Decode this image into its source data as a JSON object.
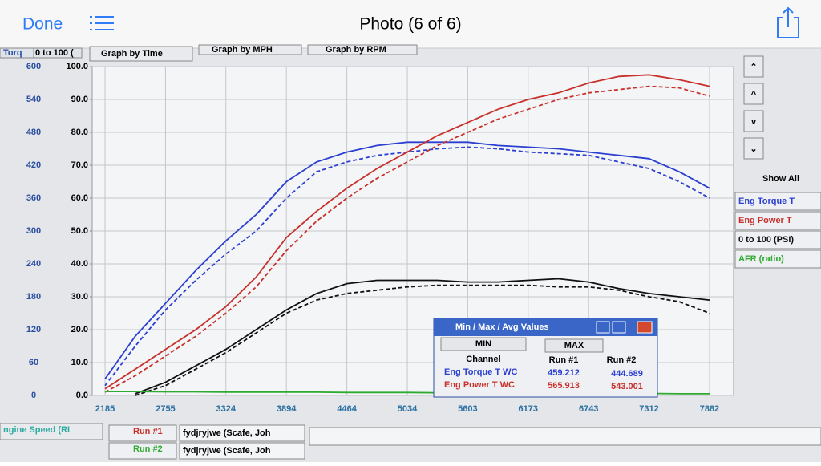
{
  "header": {
    "back": "Done",
    "title": "Photo (6 of 6)"
  },
  "tabs": [
    "Torq",
    "0 to 100 (",
    "Graph by Time",
    "Graph by MPH",
    "Graph by RPM"
  ],
  "chart_data": {
    "type": "line",
    "x": [
      2185,
      2470,
      2755,
      3040,
      3324,
      3609,
      3894,
      4179,
      4464,
      4749,
      5034,
      5318,
      5603,
      5888,
      6173,
      6458,
      6743,
      7028,
      7312,
      7597,
      7882
    ],
    "xlim": [
      2064,
      8109
    ],
    "xticks": [
      2185,
      2755,
      3324,
      3894,
      4464,
      5034,
      5603,
      6173,
      6743,
      7312,
      7882
    ],
    "ylim": [
      0,
      100
    ],
    "yticks": [
      {
        "value": 0,
        "label": "0.0"
      },
      {
        "value": 10,
        "label": "10.0"
      },
      {
        "value": 20,
        "label": "20.0"
      },
      {
        "value": 30,
        "label": "30.0"
      },
      {
        "value": 40,
        "label": "40.0"
      },
      {
        "value": 50,
        "label": "50.0"
      },
      {
        "value": 60,
        "label": "60.0"
      },
      {
        "value": 70,
        "label": "70.0"
      },
      {
        "value": 80,
        "label": "80.0"
      },
      {
        "value": 90,
        "label": "90.0"
      },
      {
        "value": 100,
        "label": "100.0"
      }
    ],
    "y2lim": [
      0,
      600
    ],
    "y2ticks": [
      0,
      60,
      120,
      180,
      240,
      300,
      360,
      420,
      480,
      540,
      600
    ],
    "grid": true,
    "series": [
      {
        "color": "#2b3fd0",
        "axis": "y2",
        "dashed": false,
        "values": [
          30,
          108,
          168,
          228,
          282,
          330,
          390,
          426,
          444,
          456,
          462,
          462,
          462,
          456,
          453,
          450,
          444,
          438,
          432,
          408,
          378
        ]
      },
      {
        "color": "#2b3fd0",
        "axis": "y2",
        "dashed": true,
        "values": [
          18,
          90,
          156,
          210,
          258,
          300,
          360,
          408,
          426,
          438,
          444,
          450,
          453,
          450,
          444,
          441,
          438,
          426,
          414,
          390,
          360
        ]
      },
      {
        "color": "#c8302a",
        "axis": "y2",
        "dashed": false,
        "values": [
          12,
          48,
          84,
          120,
          162,
          216,
          288,
          336,
          378,
          414,
          444,
          474,
          498,
          522,
          540,
          552,
          570,
          582,
          585,
          576,
          564
        ]
      },
      {
        "color": "#c8302a",
        "axis": "y2",
        "dashed": true,
        "values": [
          6,
          36,
          72,
          108,
          150,
          198,
          264,
          318,
          360,
          396,
          426,
          456,
          480,
          504,
          522,
          540,
          552,
          558,
          564,
          561,
          546
        ]
      },
      {
        "color": "#111111",
        "axis": "y",
        "dashed": false,
        "values": [
          null,
          0.5,
          4,
          9,
          14,
          20,
          26,
          31,
          34,
          35,
          35,
          35,
          34.5,
          34.5,
          35,
          35.5,
          34.5,
          32.5,
          31,
          30,
          29
        ]
      },
      {
        "color": "#111111",
        "axis": "y",
        "dashed": true,
        "values": [
          null,
          0,
          3,
          8,
          13,
          19,
          25,
          29,
          31,
          32,
          33,
          33.5,
          33.5,
          33.5,
          33.5,
          33,
          33,
          32,
          30,
          28.5,
          25
        ]
      },
      {
        "color": "#2eaa2e",
        "axis": "y",
        "dashed": false,
        "values": [
          1.2,
          1.2,
          1.1,
          1.1,
          1,
          1,
          1,
          1,
          0.9,
          0.9,
          0.9,
          0.8,
          0.8,
          0.8,
          0.7,
          0.7,
          0.7,
          0.6,
          0.6,
          0.5,
          0.5
        ]
      }
    ]
  },
  "side_panel": {
    "show_all": "Show All",
    "channels": [
      "Eng Torque T",
      "Eng Power T",
      "0 to 100 (PSI)",
      "AFR (ratio)"
    ]
  },
  "dialog": {
    "title": "Min / Max / Avg Values",
    "min": "MIN",
    "max": "MAX",
    "headers": [
      "Channel",
      "Run #1",
      "Run #2"
    ],
    "rows": [
      [
        "Eng Torque T WC",
        "459.212",
        "444.689"
      ],
      [
        "Eng Power T WC",
        "565.913",
        "543.001"
      ]
    ]
  },
  "bottom": {
    "axis_label": "ngine Speed (RI",
    "runs": [
      {
        "name": "Run #1",
        "file": "fydjryjwe (Scafe, Joh"
      },
      {
        "name": "Run #2",
        "file": "fydjryjwe (Scafe, Joh"
      }
    ]
  }
}
